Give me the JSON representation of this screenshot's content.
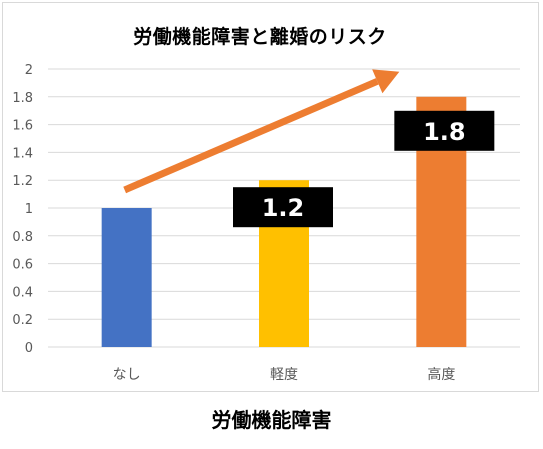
{
  "chart_data": {
    "type": "bar",
    "title": "労働機能障害と離婚のリスク",
    "xlabel": "労働機能障害",
    "ylabel": "",
    "categories": [
      "なし",
      "軽度",
      "高度"
    ],
    "values": [
      1.0,
      1.2,
      1.8
    ],
    "bar_colors": [
      "#4472c4",
      "#ffc000",
      "#ed7d31"
    ],
    "ylim": [
      0,
      2
    ],
    "yticks": [
      "0",
      "0.2",
      "0.4",
      "0.6",
      "0.8",
      "1",
      "1.2",
      "1.4",
      "1.6",
      "1.8",
      "2"
    ],
    "grid": true,
    "legend": "none",
    "callouts": [
      {
        "category": "軽度",
        "text": "1.2"
      },
      {
        "category": "高度",
        "text": "1.8"
      }
    ],
    "trend_arrow_color": "#ed7d31",
    "callout_background": "#000000"
  }
}
